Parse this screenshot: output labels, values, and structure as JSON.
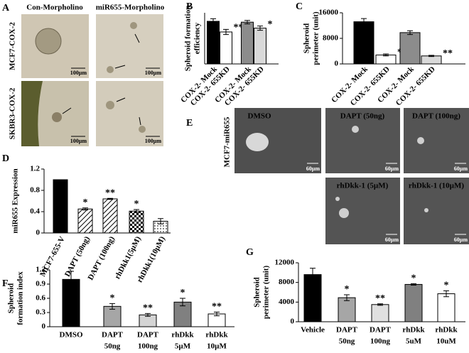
{
  "panel_a": {
    "label": "A",
    "columns": [
      "Con-Morpholino",
      "miR655-Morpholino"
    ],
    "rows": [
      "MCF7-COX-2",
      "SKBR3-COX-2"
    ],
    "scale_bar": "100µm"
  },
  "panel_e": {
    "label": "E",
    "row_label": "MCF7-miR655",
    "images": [
      "DMSO",
      "DAPT (50ng)",
      "DAPT (100ng)",
      "rhDkk-1 (5µM)",
      "rhDkk-1 (10µM)"
    ],
    "scale_bar": "60µm"
  },
  "chart_data": [
    {
      "type": "bar",
      "panel_label": "B",
      "ylabel": [
        "Spheroid formation",
        "efficiency"
      ],
      "categories": [
        "COX-2- Mock",
        "COX-2- 655KD",
        "COX-2- Mock",
        "COX-2- 655KD"
      ],
      "values": [
        100,
        75,
        98,
        84
      ],
      "errors": [
        6,
        6,
        4,
        5
      ],
      "significance": [
        null,
        "**",
        null,
        "*"
      ],
      "colors": [
        "#000000",
        "#ffffff",
        "#8c8c8c",
        "#d9d9d9"
      ],
      "ylim": [
        0,
        120
      ]
    },
    {
      "type": "bar",
      "panel_label": "C",
      "ylabel": [
        "Spheroid",
        "perimeter (unit)"
      ],
      "categories": [
        "COX-2- Mock",
        "COX-2- 655KD",
        "COX-2- Mock",
        "COX-2- 655KD"
      ],
      "values": [
        13200,
        2800,
        9800,
        2500
      ],
      "errors": [
        1000,
        300,
        600,
        200
      ],
      "significance": [
        null,
        "***",
        null,
        "**"
      ],
      "colors": [
        "#000000",
        "#ffffff",
        "#8c8c8c",
        "#d9d9d9"
      ],
      "ylim": [
        0,
        16000
      ],
      "yticks": [
        0,
        8000,
        16000
      ]
    },
    {
      "type": "bar",
      "panel_label": "D",
      "ylabel": [
        "miR655 Expression"
      ],
      "categories": [
        "MCF7-655-V",
        "DAPT (50ng)",
        "DAPT (100ng)",
        "rhDkk1(5µM)",
        "rhDkk1(10µM)"
      ],
      "values": [
        1.0,
        0.45,
        0.64,
        0.41,
        0.22
      ],
      "errors": [
        null,
        0.02,
        0.01,
        0.03,
        0.05
      ],
      "significance": [
        null,
        "*",
        "**",
        "*",
        null
      ],
      "colors": [
        "#000000",
        "#ffffff",
        "#ffffff",
        "#ffffff",
        "#ffffff"
      ],
      "patterns": [
        null,
        "hatch",
        "hatch",
        "check",
        "dots"
      ],
      "ylim": [
        0,
        1.2
      ],
      "yticks": [
        0,
        0.4,
        0.8,
        1.2
      ]
    },
    {
      "type": "bar",
      "panel_label": "F",
      "ylabel": [
        "Spheroid",
        "formation index"
      ],
      "categories": [
        [
          "DMSO"
        ],
        [
          "DAPT",
          "50ng"
        ],
        [
          "DAPT",
          "100ng"
        ],
        [
          "rhDkk",
          "5µM"
        ],
        [
          "rhDkk",
          "10µM"
        ]
      ],
      "values": [
        1.0,
        0.43,
        0.25,
        0.52,
        0.27
      ],
      "errors": [
        0.17,
        0.06,
        0.03,
        0.08,
        0.04
      ],
      "significance": [
        null,
        "*",
        "**",
        "*",
        "**"
      ],
      "colors": [
        "#000000",
        "#a6a6a6",
        "#d4d4d4",
        "#808080",
        "#ffffff"
      ],
      "ylim": [
        0,
        1.2
      ],
      "yticks": [
        0,
        0.3,
        0.6,
        0.9,
        1.2
      ]
    },
    {
      "type": "bar",
      "panel_label": "G",
      "ylabel": [
        "Spheroid",
        "perimeter (unit)"
      ],
      "categories": [
        [
          "Vehicle"
        ],
        [
          "DAPT",
          "50ng"
        ],
        [
          "DAPT",
          "100ng"
        ],
        [
          "rhDkk",
          "5uM"
        ],
        [
          "rhDkk",
          "10uM"
        ]
      ],
      "values": [
        9600,
        4900,
        3500,
        7600,
        5700
      ],
      "errors": [
        1300,
        600,
        150,
        150,
        600
      ],
      "significance": [
        null,
        "*",
        "**",
        "*",
        "*"
      ],
      "colors": [
        "#000000",
        "#a6a6a6",
        "#e0e0e0",
        "#808080",
        "#ffffff"
      ],
      "ylim": [
        0,
        12000
      ],
      "yticks": [
        0,
        4000,
        8000,
        12000
      ]
    }
  ]
}
